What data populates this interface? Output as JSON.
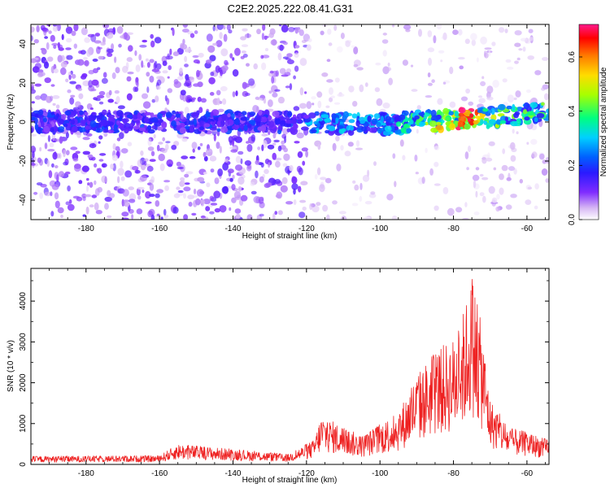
{
  "title": "C2E2.2025.222.08.41.G31",
  "colors": {
    "snr_line": "#ee2222",
    "colormap": [
      "#f4ecfc",
      "#d6b6f4",
      "#a060f0",
      "#6a00ff",
      "#2a1aff",
      "#0060ff",
      "#00c8ff",
      "#00ff9a",
      "#b0ff00",
      "#ffdc00",
      "#ff8000",
      "#ff0000",
      "#ff1a8c"
    ]
  },
  "chart_data": [
    {
      "id": "spectrogram",
      "type": "heatmap",
      "xlabel": "Height of straight line (km)",
      "ylabel": "Frequency (Hz)",
      "xlim": [
        -195,
        -54
      ],
      "ylim": [
        -50,
        50
      ],
      "x_ticks": [
        -180,
        -160,
        -140,
        -120,
        -100,
        -80,
        -60
      ],
      "y_ticks": [
        -40,
        -20,
        0,
        20,
        40
      ],
      "colorbar": {
        "label": "Normalized spectral amplitude",
        "range": [
          0.0,
          0.72
        ],
        "ticks": [
          0.0,
          0.2,
          0.4,
          0.6
        ]
      },
      "ridge": {
        "x": [
          -195,
          -120,
          -100,
          -80,
          -60,
          -54
        ],
        "y": [
          0,
          0,
          -1,
          1,
          4,
          6
        ],
        "peak_amplitude": 0.72,
        "peak_x": -77
      }
    },
    {
      "id": "snr",
      "type": "line",
      "xlabel": "Height of straight line (km)",
      "ylabel": "SNR (10 * v/v)",
      "xlim": [
        -195,
        -54
      ],
      "ylim": [
        0,
        4800
      ],
      "x_ticks": [
        -180,
        -160,
        -140,
        -120,
        -100,
        -80,
        -60
      ],
      "y_ticks": [
        0,
        1000,
        2000,
        3000,
        4000
      ],
      "envelope": {
        "x": [
          -195,
          -160,
          -155,
          -125,
          -118,
          -116,
          -105,
          -95,
          -90,
          -85,
          -80,
          -78,
          -76,
          -75,
          -72,
          -70,
          -65,
          -60,
          -54
        ],
        "y": [
          200,
          220,
          500,
          250,
          600,
          1200,
          700,
          1300,
          2200,
          2800,
          3100,
          3500,
          4200,
          4750,
          3200,
          1600,
          900,
          800,
          600
        ]
      }
    }
  ]
}
